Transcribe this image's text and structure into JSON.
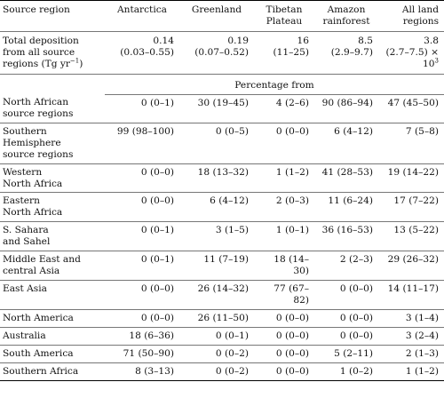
{
  "headers": {
    "source_region": "Source region",
    "antarctica": "Antarctica",
    "greenland": "Greenland",
    "tibetan_1": "Tibetan",
    "tibetan_2": "Plateau",
    "amazon_1": "Amazon",
    "amazon_2": "rainforest",
    "all_land_1": "All land",
    "all_land_2": "regions"
  },
  "total_row": {
    "label_1": "Total deposition",
    "label_2": "from all source",
    "label_3": "regions (Tg yr",
    "label_sup": "−1",
    "label_end": ")",
    "antarctica": "0.14",
    "antarctica_range": "(0.03–0.55)",
    "greenland": "0.19",
    "greenland_range": "(0.07–0.52)",
    "tibetan": "16",
    "tibetan_range": "(11–25)",
    "amazon": "8.5",
    "amazon_range": "(2.9–9.7)",
    "all_land": "3.8",
    "all_land_range": "(2.7–7.5) × 10",
    "all_land_sup": "3"
  },
  "percentage_header": "Percentage from",
  "rows": [
    {
      "label": [
        "North African",
        "source regions"
      ],
      "values": [
        "0 (0–1)",
        "30 (19–45)",
        "4 (2–6)",
        "90 (86–94)",
        "47 (45–50)"
      ]
    },
    {
      "label": [
        "Southern Hemisphere",
        "source regions"
      ],
      "values": [
        "99 (98–100)",
        "0 (0–5)",
        "0 (0–0)",
        "6 (4–12)",
        "7 (5–8)"
      ]
    },
    {
      "label": [
        "Western",
        "North Africa"
      ],
      "values": [
        "0 (0–0)",
        "18 (13–32)",
        "1 (1–2)",
        "41 (28–53)",
        "19 (14–22)"
      ]
    },
    {
      "label": [
        "Eastern",
        "North Africa"
      ],
      "values": [
        "0 (0–0)",
        "6 (4–12)",
        "2 (0–3)",
        "11 (6–24)",
        "17 (7–22)"
      ]
    },
    {
      "label": [
        "S. Sahara",
        "and Sahel"
      ],
      "values": [
        "0 (0–1)",
        "3 (1–5)",
        "1 (0–1)",
        "36 (16–53)",
        "13 (5–22)"
      ]
    },
    {
      "label": [
        "Middle East and",
        "central Asia"
      ],
      "values": [
        "0 (0–1)",
        "11 (7–19)",
        "18 (14–30)",
        "2 (2–3)",
        "29 (26–32)"
      ]
    },
    {
      "label": [
        "East Asia"
      ],
      "values": [
        "0 (0–0)",
        "26 (14–32)",
        "77 (67–82)",
        "0 (0–0)",
        "14 (11–17)"
      ]
    },
    {
      "label": [
        "North America"
      ],
      "values": [
        "0 (0–0)",
        "26 (11–50)",
        "0 (0–0)",
        "0 (0–0)",
        "3 (1–4)"
      ]
    },
    {
      "label": [
        "Australia"
      ],
      "values": [
        "18 (6–36)",
        "0 (0–1)",
        "0 (0–0)",
        "0 (0–0)",
        "3 (2–4)"
      ]
    },
    {
      "label": [
        "South America"
      ],
      "values": [
        "71 (50–90)",
        "0 (0–2)",
        "0 (0–0)",
        "5 (2–11)",
        "2 (1–3)"
      ]
    },
    {
      "label": [
        "Southern Africa"
      ],
      "values": [
        "8 (3–13)",
        "0 (0–2)",
        "0 (0–0)",
        "1 (0–2)",
        "1 (1–2)"
      ]
    }
  ]
}
